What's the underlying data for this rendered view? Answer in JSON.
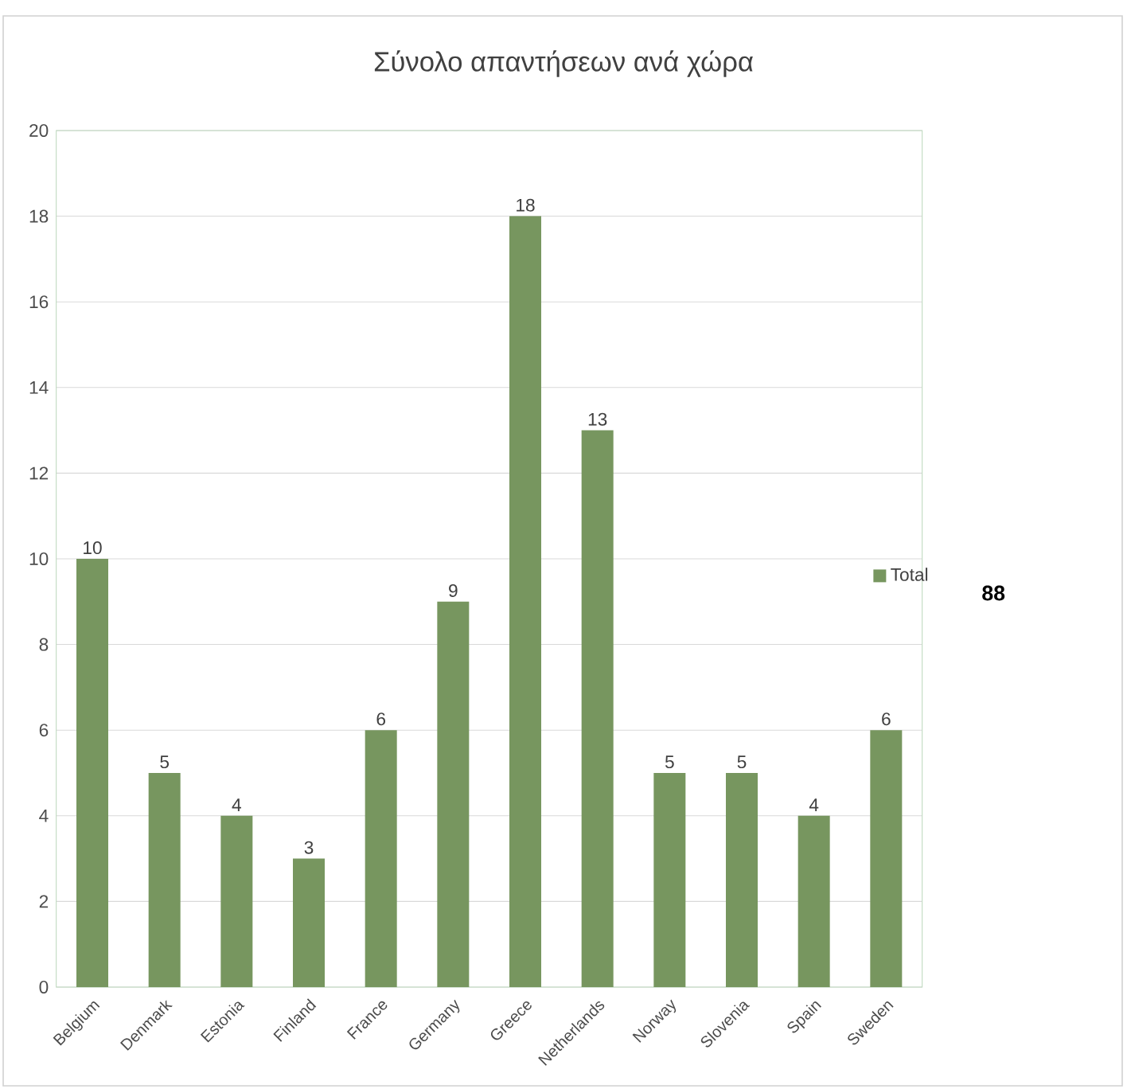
{
  "chart_data": {
    "type": "bar",
    "title": "Σύνολο απαντήσεων ανά χώρα",
    "categories": [
      "Belgium",
      "Denmark",
      "Estonia",
      "Finland",
      "France",
      "Germany",
      "Greece",
      "Netherlands",
      "Norway",
      "Slovenia",
      "Spain",
      "Sweden"
    ],
    "series": [
      {
        "name": "Total",
        "color": "#77965f",
        "values": [
          10,
          5,
          4,
          3,
          6,
          9,
          18,
          13,
          5,
          5,
          4,
          6
        ]
      }
    ],
    "ylim": [
      0,
      20
    ],
    "yticks": [
      0,
      2,
      4,
      6,
      8,
      10,
      12,
      14,
      16,
      18,
      20
    ],
    "grid": "y",
    "legend": "right",
    "data_labels": true,
    "annotations": [
      "88"
    ]
  }
}
